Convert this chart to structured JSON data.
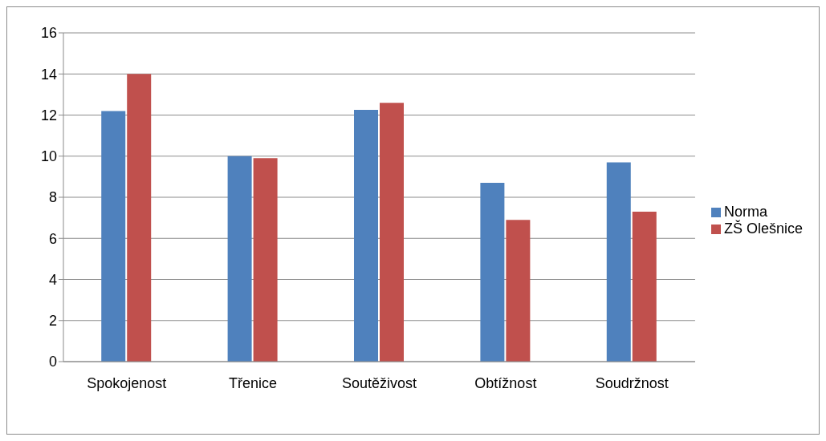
{
  "chart_data": {
    "type": "bar",
    "categories": [
      "Spokojenost",
      "Třenice",
      "Soutěživost",
      "Obtížnost",
      "Soudržnost"
    ],
    "series": [
      {
        "name": "Norma",
        "color": "#4f81bd",
        "values": [
          12.2,
          10.0,
          12.25,
          8.7,
          9.7
        ]
      },
      {
        "name": "ZŠ Olešnice",
        "color": "#c0504d",
        "values": [
          14.0,
          9.9,
          12.6,
          6.9,
          7.3
        ]
      }
    ],
    "ylim": [
      0,
      16
    ],
    "yticks": [
      0,
      2,
      4,
      6,
      8,
      10,
      12,
      14,
      16
    ],
    "grid": "y",
    "legend": "right"
  }
}
